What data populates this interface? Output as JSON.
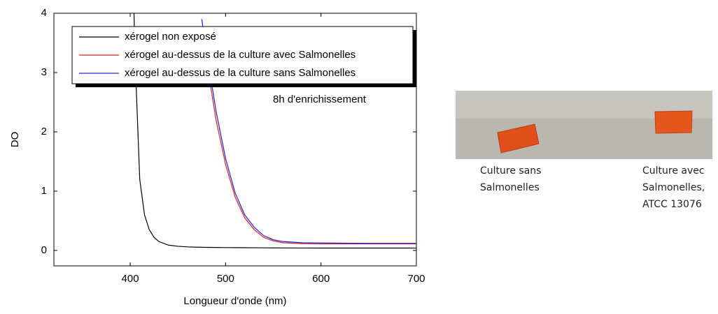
{
  "chart_data": {
    "type": "line",
    "annotation": "8h d'enrichissement",
    "x_label": "Longueur d'onde (nm)",
    "y_label": "DO",
    "x": [
      404,
      405,
      410,
      415,
      420,
      425,
      430,
      440,
      450,
      460,
      470,
      475,
      480,
      490,
      500,
      510,
      520,
      530,
      540,
      550,
      560,
      580,
      600,
      650,
      700
    ],
    "series": [
      {
        "name": "xérogel non exposé",
        "color": "#000000",
        "values": [
          4,
          3.3,
          1.2,
          0.6,
          0.35,
          0.22,
          0.15,
          0.09,
          0.07,
          0.06,
          0.055,
          0.053,
          0.052,
          0.05,
          0.048,
          0.047,
          0.046,
          0.045,
          0.044,
          0.043,
          0.042,
          0.041,
          0.04,
          0.04,
          0.04
        ]
      },
      {
        "name": "xérogel au-dessus de la culture avec Salmonelles",
        "color": "#e02020",
        "values": [
          null,
          null,
          null,
          null,
          null,
          null,
          null,
          null,
          null,
          null,
          null,
          3.7,
          3.2,
          2.2,
          1.45,
          0.9,
          0.55,
          0.35,
          0.22,
          0.16,
          0.13,
          0.115,
          0.11,
          0.11,
          0.11
        ]
      },
      {
        "name": "xérogel au-dessus de la culture sans Salmonelles",
        "color": "#2020e0",
        "values": [
          null,
          null,
          null,
          null,
          null,
          null,
          null,
          null,
          null,
          null,
          null,
          3.9,
          3.35,
          2.35,
          1.55,
          0.97,
          0.6,
          0.39,
          0.25,
          0.18,
          0.15,
          0.13,
          0.125,
          0.12,
          0.12
        ]
      }
    ],
    "xlim": [
      320,
      700
    ],
    "xticks": [
      400,
      500,
      600,
      700
    ],
    "ylim": [
      -0.26,
      4
    ],
    "yticks": [
      0,
      1,
      2,
      3,
      4
    ]
  },
  "photo": {
    "captions": [
      [
        "Culture sans",
        "Salmonelles"
      ],
      [
        "Culture avec",
        "Salmonelles,",
        "ATCC 13076"
      ]
    ]
  }
}
